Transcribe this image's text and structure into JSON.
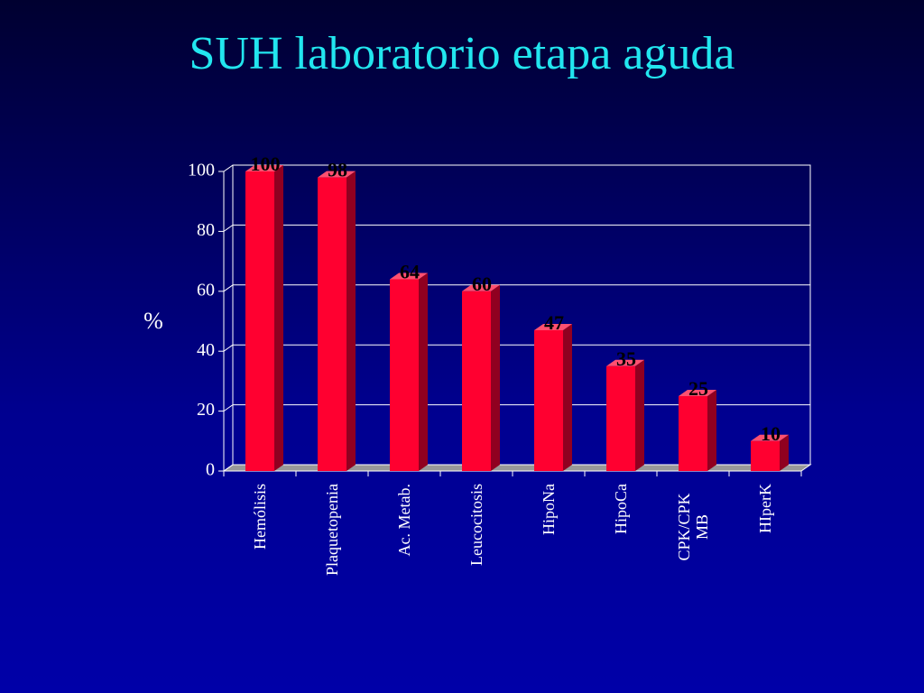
{
  "chart_data": {
    "type": "bar",
    "title": "SUH laboratorio etapa aguda",
    "y_label": "%",
    "categories": [
      "Hemólisis",
      "Plaquetopenia",
      "Ac. Metab.",
      "Leucocitosis",
      "HipoNa",
      "HipoCa",
      "CPK/CPK MB",
      "HIperK"
    ],
    "values": [
      100,
      98,
      64,
      60,
      47,
      35,
      25,
      10
    ],
    "color": "#ff0030",
    "ylim": [
      0,
      100
    ],
    "yticks": [
      0,
      20,
      40,
      60,
      80,
      100
    ],
    "grid": true
  }
}
